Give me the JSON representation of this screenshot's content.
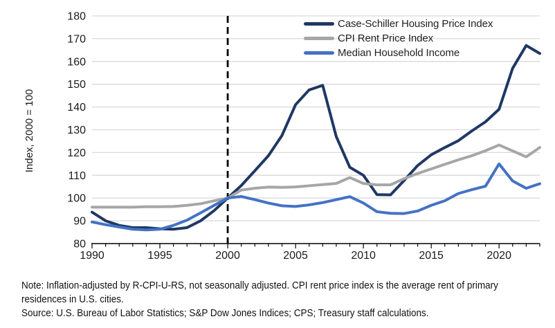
{
  "legend": {
    "items": [
      {
        "label": "Case-Schiller Housing Price Index",
        "color": "#1F3864"
      },
      {
        "label": "CPI Rent Price Index",
        "color": "#A6A6A6"
      },
      {
        "label": "Median Household Income",
        "color": "#4472C4"
      }
    ]
  },
  "notes": {
    "note": "Note: Inflation-adjusted by R-CPI-U-RS, not seasonally adjusted. CPI rent price index is the average rent of primary residences in U.S. cities.",
    "source": "Source: U.S. Bureau of Labor Statistics; S&P Dow Jones Indices; CPS; Treasury staff calculations."
  },
  "chart_data": {
    "type": "line",
    "title": "",
    "xlabel": "",
    "ylabel": "Index, 2000 = 100",
    "xlim": [
      1990,
      2023
    ],
    "ylim": [
      80,
      180
    ],
    "xticks": [
      1990,
      1995,
      2000,
      2005,
      2010,
      2015,
      2020
    ],
    "yticks": [
      80,
      90,
      100,
      110,
      120,
      130,
      140,
      150,
      160,
      170,
      180
    ],
    "grid": "horizontal",
    "gridline_color": "#D9D9D9",
    "axis_color": "#000000",
    "legend_position": "top-right",
    "refline": {
      "x": 2000,
      "style": "dashed",
      "color": "#000000"
    },
    "x": [
      1990,
      1991,
      1992,
      1993,
      1994,
      1995,
      1996,
      1997,
      1998,
      1999,
      2000,
      2001,
      2002,
      2003,
      2004,
      2005,
      2006,
      2007,
      2008,
      2009,
      2010,
      2011,
      2012,
      2013,
      2014,
      2015,
      2016,
      2017,
      2018,
      2019,
      2020,
      2021,
      2022,
      2023
    ],
    "series": [
      {
        "name": "Case-Schiller Housing Price Index",
        "color": "#1F3864",
        "values": [
          93.8,
          90,
          88,
          87,
          87,
          86.5,
          86.3,
          87,
          90,
          94.5,
          100,
          105.5,
          112,
          118.6,
          127.5,
          141,
          147.5,
          149.5,
          127,
          113.5,
          110,
          101.5,
          101.4,
          107.7,
          114.3,
          119,
          122.2,
          125.2,
          129.5,
          133.5,
          139,
          157,
          167,
          163.5
        ]
      },
      {
        "name": "CPI Rent Price Index",
        "color": "#A6A6A6",
        "values": [
          96,
          96,
          96,
          96,
          96.2,
          96.2,
          96.3,
          96.8,
          97.5,
          98.8,
          100,
          103.5,
          104.3,
          104.8,
          104.7,
          104.9,
          105.4,
          105.9,
          106.4,
          109,
          106.4,
          105.8,
          105.8,
          108.5,
          110.8,
          112.8,
          114.8,
          116.8,
          118.6,
          120.8,
          123.3,
          120.7,
          118.1,
          122.2
        ]
      },
      {
        "name": "Median Household Income",
        "color": "#4472C4",
        "values": [
          89.5,
          88.3,
          87.3,
          86.3,
          86,
          86.3,
          88,
          90.3,
          93.5,
          96.8,
          100,
          100.7,
          99.3,
          97.8,
          96.6,
          96.3,
          97,
          98,
          99.3,
          100.6,
          97.8,
          94,
          93.3,
          93.2,
          94.3,
          96.8,
          98.8,
          102,
          103.7,
          105.2,
          115,
          107.5,
          104.3,
          106.3
        ]
      }
    ]
  }
}
